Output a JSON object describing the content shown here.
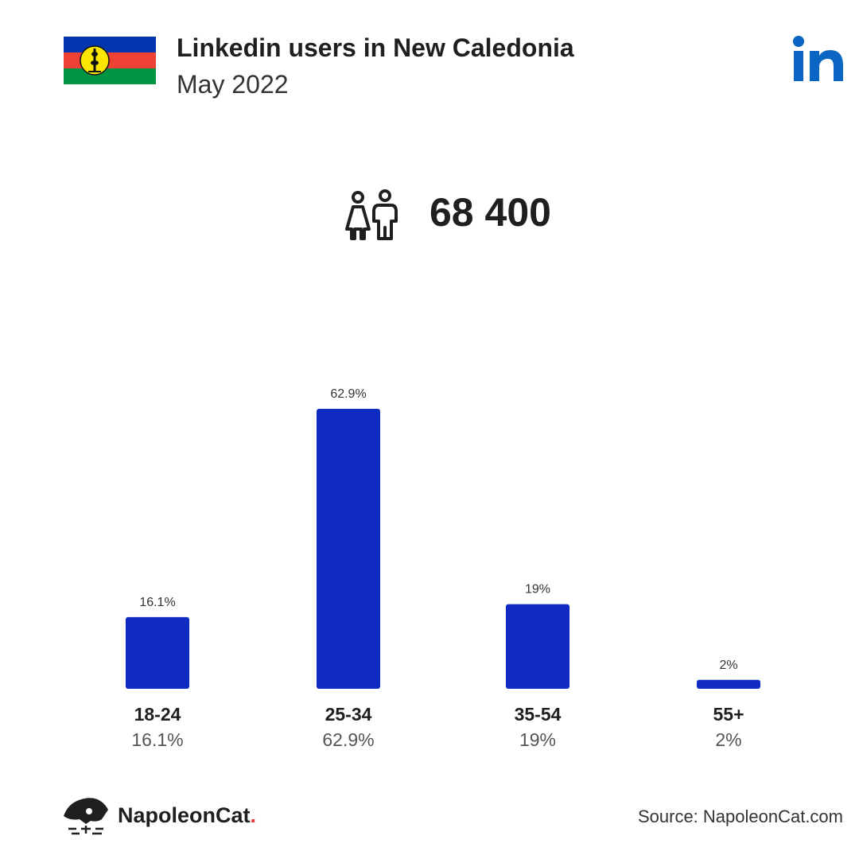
{
  "header": {
    "title": "Linkedin users in New Caledonia",
    "subtitle": "May 2022"
  },
  "total_users": "68 400",
  "chart_data": {
    "type": "bar",
    "categories": [
      "18-24",
      "25-34",
      "35-54",
      "55+"
    ],
    "values": [
      16.1,
      62.9,
      19,
      2
    ],
    "value_labels": [
      "16.1%",
      "62.9%",
      "19%",
      "2%"
    ],
    "bar_color": "#102bc4",
    "ylim": [
      0,
      62.9
    ],
    "grid": false
  },
  "footer": {
    "brand": "NapoleonCat",
    "brand_dot": ".",
    "source": "Source: NapoleonCat.com"
  },
  "colors": {
    "linkedin": "#0a66c2",
    "flag_blue": "#0035ad",
    "flag_red": "#ed4135",
    "flag_green": "#009543",
    "flag_yellow": "#fae600"
  }
}
